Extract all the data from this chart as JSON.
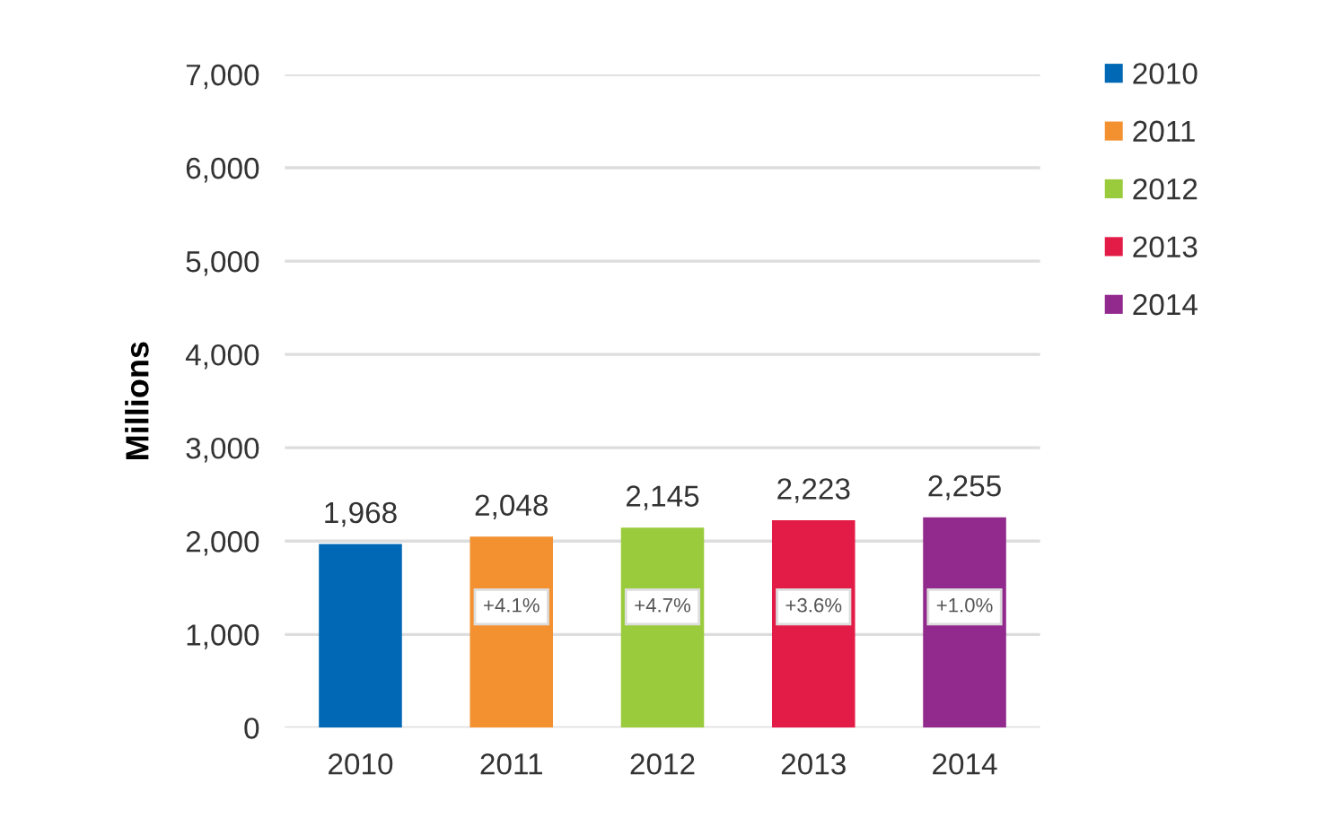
{
  "chart_data": {
    "type": "bar",
    "ylabel": "Millions",
    "categories": [
      "2010",
      "2011",
      "2012",
      "2013",
      "2014"
    ],
    "series": [
      {
        "name": "2010",
        "color": "#0068b4",
        "values": [
          1968,
          null,
          null,
          null,
          null
        ],
        "value_labels": [
          "1,968",
          null,
          null,
          null,
          null
        ]
      },
      {
        "name": "2011",
        "color": "#f39130",
        "values": [
          null,
          2048,
          null,
          null,
          null
        ],
        "value_labels": [
          null,
          "2,048",
          null,
          null,
          null
        ]
      },
      {
        "name": "2012",
        "color": "#9acb3c",
        "values": [
          null,
          null,
          2145,
          null,
          null
        ],
        "value_labels": [
          null,
          null,
          "2,145",
          null,
          null
        ]
      },
      {
        "name": "2013",
        "color": "#e31c47",
        "values": [
          null,
          null,
          null,
          2223,
          null
        ],
        "value_labels": [
          null,
          null,
          null,
          "2,223",
          null
        ]
      },
      {
        "name": "2014",
        "color": "#922a8e",
        "values": [
          null,
          null,
          null,
          null,
          2255
        ],
        "value_labels": [
          null,
          null,
          null,
          null,
          "2,255"
        ]
      }
    ],
    "ylim": [
      0,
      7000
    ],
    "yticks": [
      0,
      {
        "value": 1000,
        "label": "1,000"
      },
      {
        "value": 2000,
        "label": "2,000"
      },
      {
        "value": 3000,
        "label": "3,000"
      },
      {
        "value": 4000,
        "label": "4,000"
      },
      {
        "value": 5000,
        "label": "5,000"
      },
      {
        "value": 6000,
        "label": "6,000"
      },
      {
        "value": 7000,
        "label": "7,000"
      }
    ],
    "grid": "y",
    "legend": "top right",
    "annotations": [
      "+4.1%",
      "+4.7%",
      "+3.6%",
      "+1.0%"
    ]
  }
}
